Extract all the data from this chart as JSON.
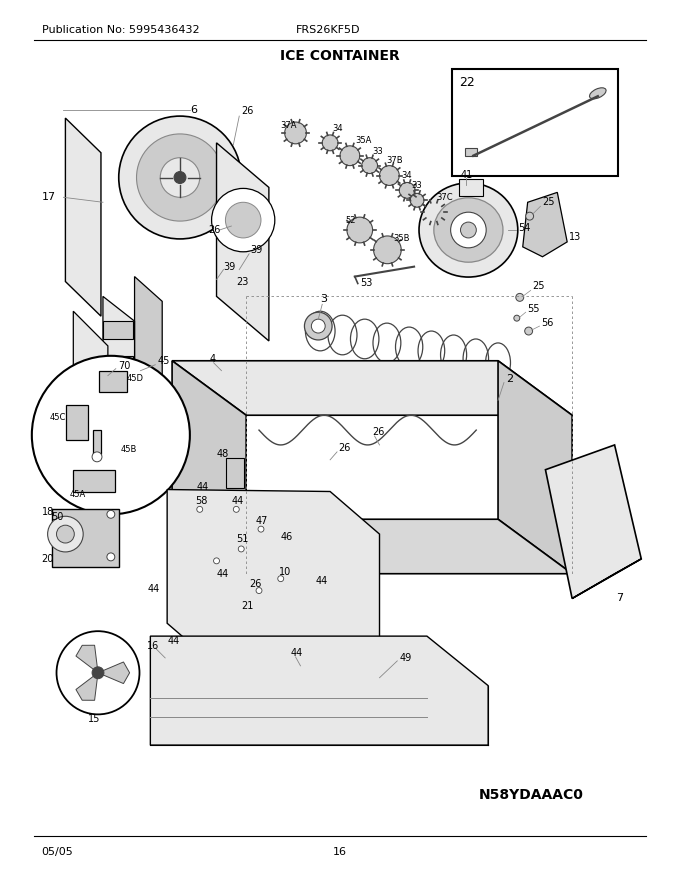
{
  "title": "ICE CONTAINER",
  "pub_no": "Publication No: 5995436432",
  "model": "FRS26KF5D",
  "page": "16",
  "date": "05/05",
  "part_code": "N58YDAAAC0",
  "bg_color": "#ffffff",
  "line_color": "#000000",
  "dark_gray": "#444444",
  "med_gray": "#888888",
  "light_gray": "#cccccc",
  "very_light": "#e8e8e8",
  "title_fontsize": 10,
  "label_fontsize": 8,
  "header_fontsize": 8,
  "small_fontsize": 7
}
